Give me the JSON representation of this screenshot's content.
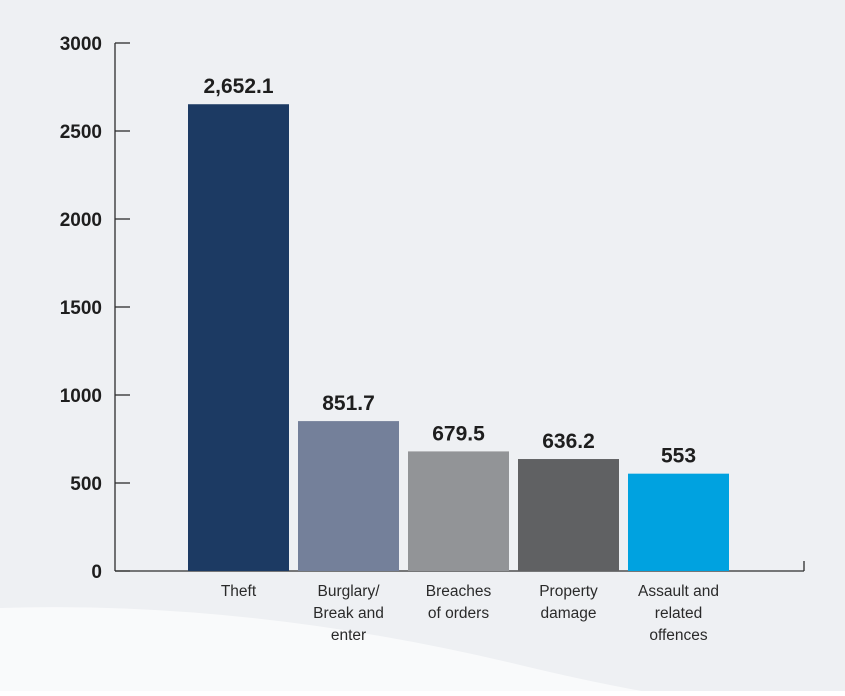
{
  "colors": {
    "background": "#eef0f3",
    "axis": "#2d2d2d",
    "bar_colors": [
      "#1c3a63",
      "#74809a",
      "#929497",
      "#606163",
      "#00a2e0"
    ]
  },
  "chart_data": {
    "type": "bar",
    "categories": [
      [
        "Theft"
      ],
      [
        "Burglary/",
        "Break and",
        "enter"
      ],
      [
        "Breaches",
        "of orders"
      ],
      [
        "Property",
        "damage"
      ],
      [
        "Assault and",
        "related",
        "offences"
      ]
    ],
    "values": [
      2652.1,
      851.7,
      679.5,
      636.2,
      553
    ],
    "data_labels": [
      "2,652.1",
      "851.7",
      "679.5",
      "636.2",
      "553"
    ],
    "yticks": [
      "0",
      "500",
      "1000",
      "1500",
      "2000",
      "2500",
      "3000"
    ],
    "ylim": [
      0,
      3000
    ],
    "grid": false,
    "legend": "none"
  }
}
